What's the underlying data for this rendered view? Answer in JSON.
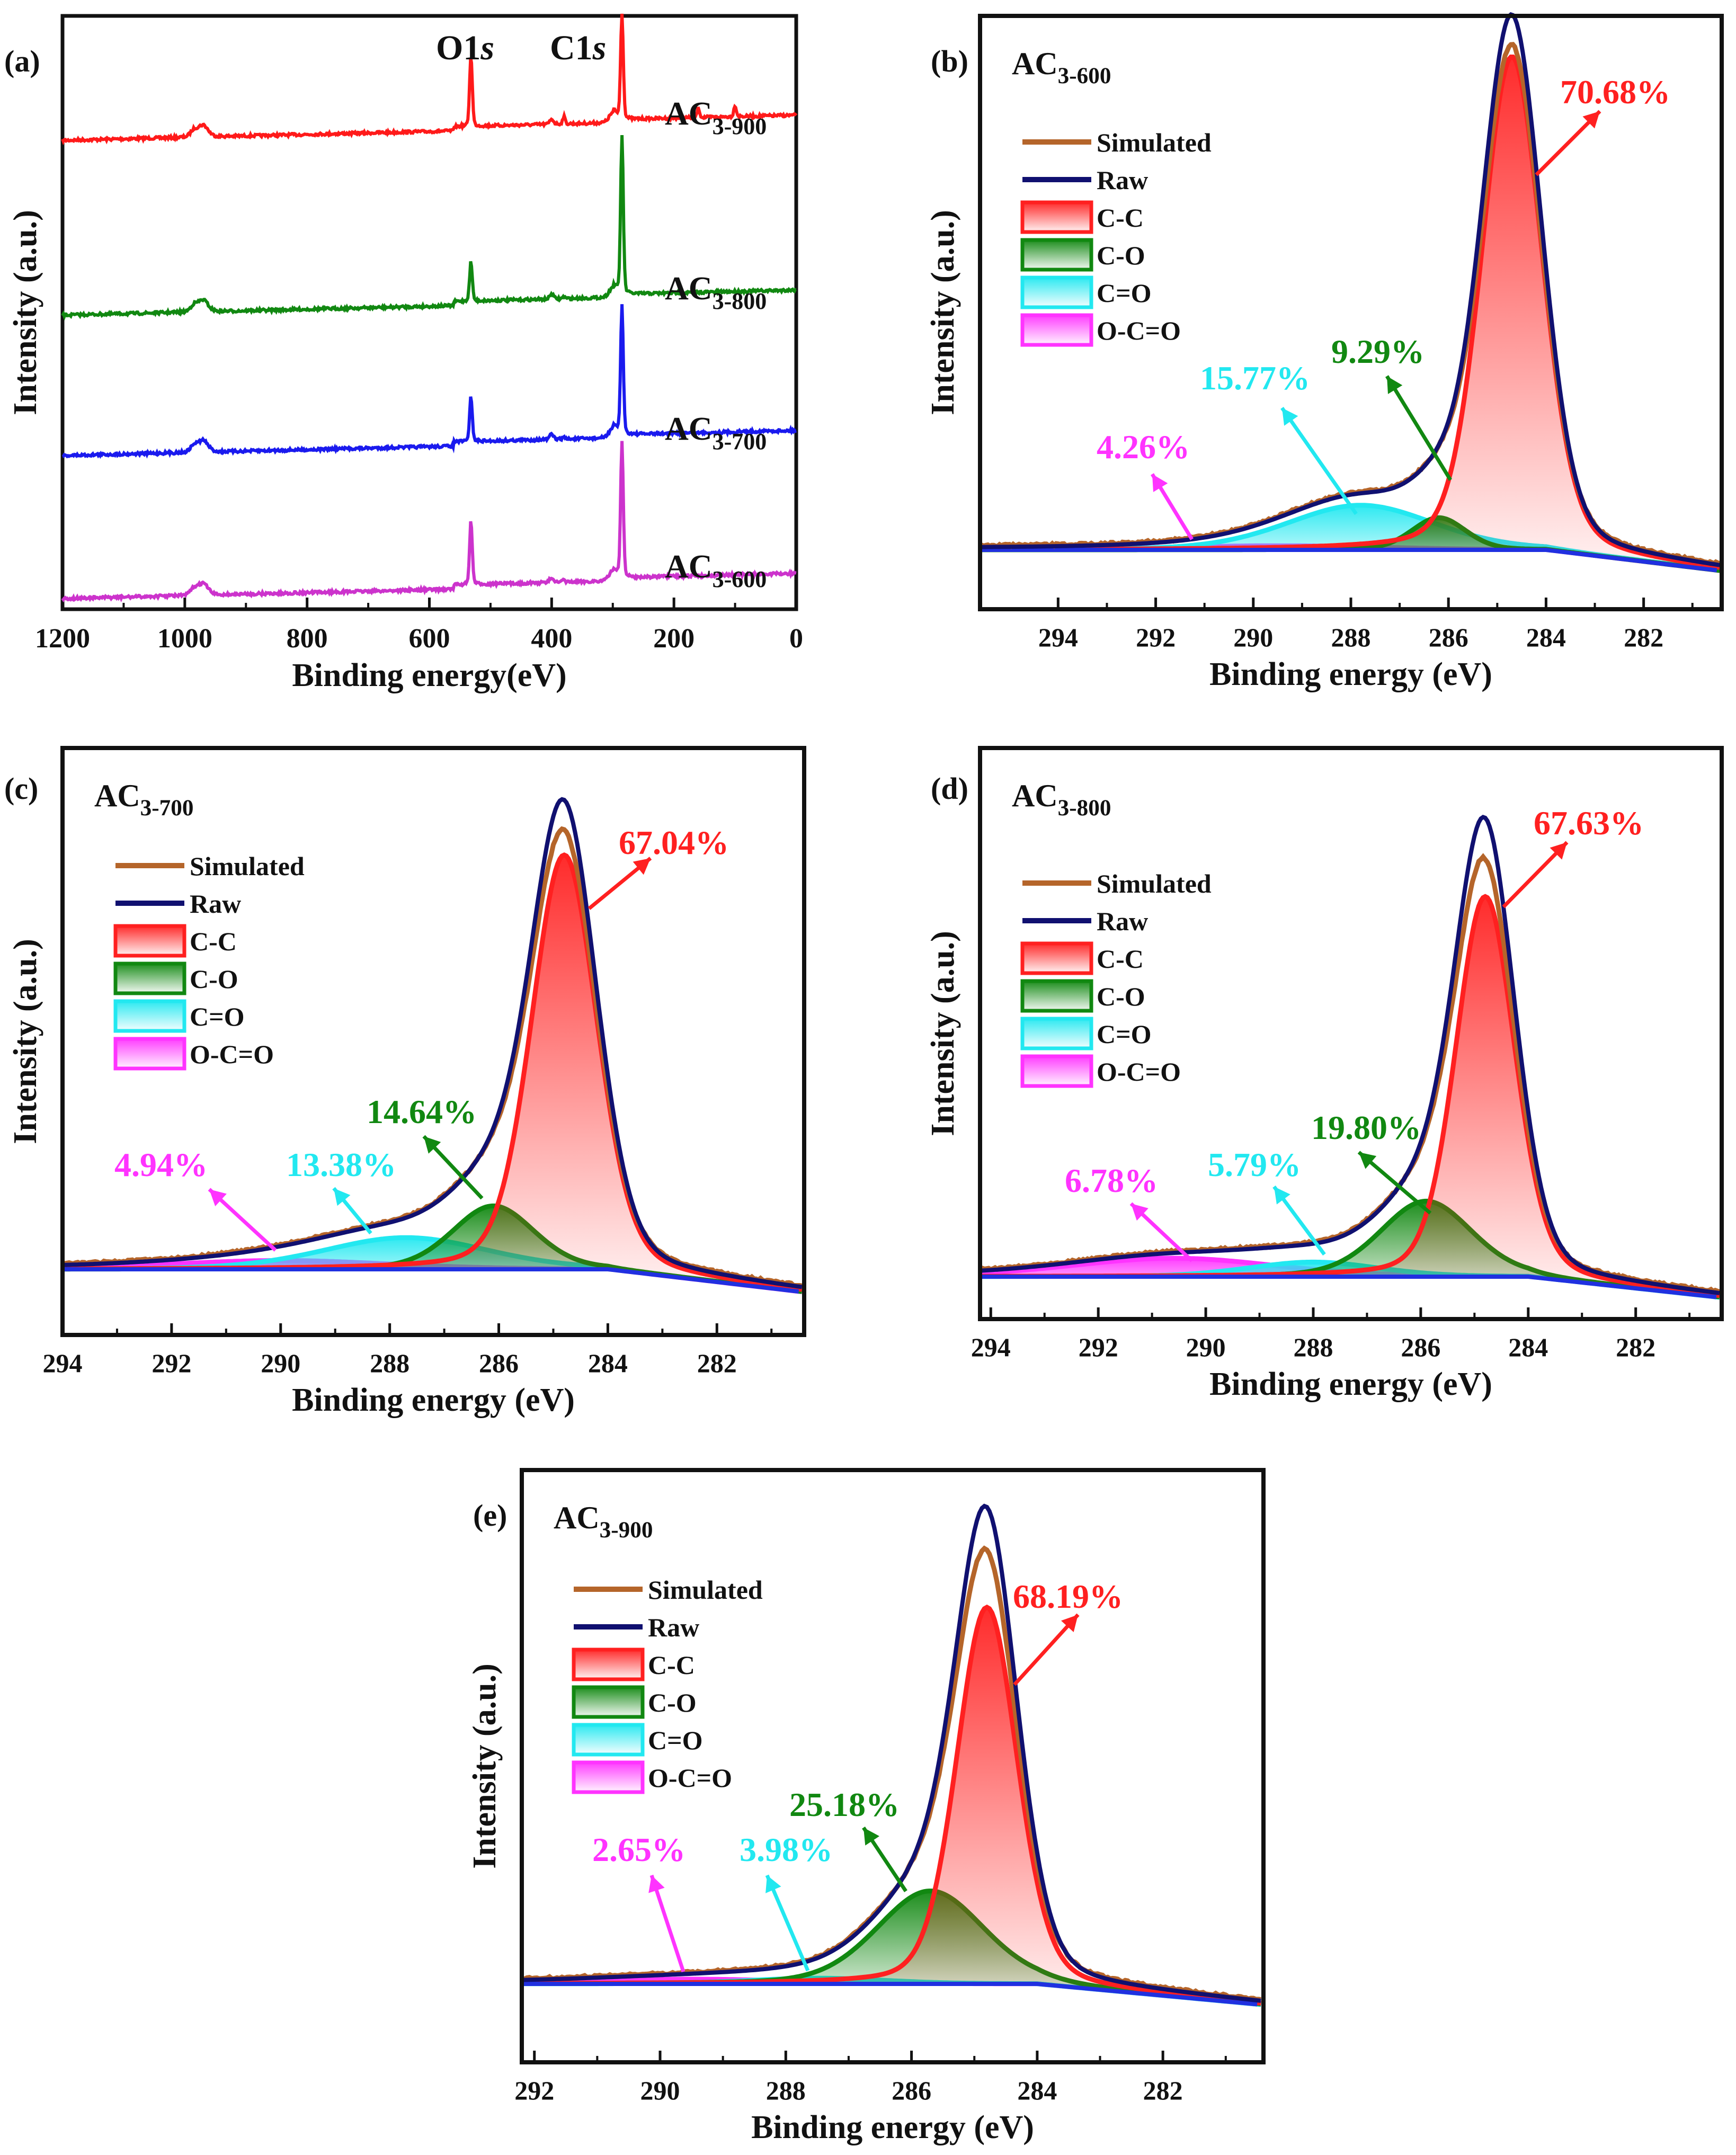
{
  "chart_data": [
    {
      "panel": "(a)",
      "type": "line",
      "title": "",
      "xlabel": "Binding energy(eV)",
      "ylabel": "Intensity (a.u.)",
      "xlim": [
        1200,
        0
      ],
      "xticks": [
        "1200",
        "1000",
        "800",
        "600",
        "400",
        "200",
        "0"
      ],
      "peak_labels": {
        "o1s_main": "O1",
        "o1s_italic": "s",
        "c1s_main": "C1",
        "c1s_italic": "s"
      },
      "series": [
        {
          "name": "AC3-900",
          "label_main": "AC",
          "label_sub": "3-900",
          "color": "#ff1a1a"
        },
        {
          "name": "AC3-800",
          "label_main": "AC",
          "label_sub": "3-800",
          "color": "#118811"
        },
        {
          "name": "AC3-700",
          "label_main": "AC",
          "label_sub": "3-700",
          "color": "#1a1aee"
        },
        {
          "name": "AC3-600",
          "label_main": "AC",
          "label_sub": "3-600",
          "color": "#cc33cc"
        }
      ]
    },
    {
      "panel": "(b)",
      "type": "area",
      "sample_main": "AC",
      "sample_sub": "3-600",
      "xlabel": "Binding energy (eV)",
      "ylabel": "Intensity (a.u.)",
      "xlim": [
        295.6,
        280.4
      ],
      "xticks": [
        "294",
        "292",
        "290",
        "288",
        "286",
        "284",
        "282"
      ],
      "legend": [
        "Simulated",
        "Raw",
        "C-C",
        "C-O",
        "C=O",
        "O-C=O"
      ],
      "components": [
        {
          "name": "C-C",
          "center": 284.7,
          "percent": "70.68%"
        },
        {
          "name": "C-O",
          "center": 286.2,
          "percent": "9.29%"
        },
        {
          "name": "C=O",
          "center": 287.8,
          "percent": "15.77%"
        },
        {
          "name": "O-C=O",
          "center": 289.5,
          "percent": "4.26%"
        }
      ]
    },
    {
      "panel": "(c)",
      "type": "area",
      "sample_main": "AC",
      "sample_sub": "3-700",
      "xlabel": "Binding energy (eV)",
      "ylabel": "Intensity (a.u.)",
      "xlim": [
        294,
        280.4
      ],
      "xticks": [
        "294",
        "292",
        "290",
        "288",
        "286",
        "284",
        "282"
      ],
      "legend": [
        "Simulated",
        "Raw",
        "C-C",
        "C-O",
        "C=O",
        "O-C=O"
      ],
      "components": [
        {
          "name": "C-C",
          "center": 284.8,
          "percent": "67.04%"
        },
        {
          "name": "C-O",
          "center": 286.1,
          "percent": "14.64%"
        },
        {
          "name": "C=O",
          "center": 287.7,
          "percent": "13.38%"
        },
        {
          "name": "O-C=O",
          "center": 290.0,
          "percent": "4.94%"
        }
      ]
    },
    {
      "panel": "(d)",
      "type": "area",
      "sample_main": "AC",
      "sample_sub": "3-800",
      "xlabel": "Binding energy (eV)",
      "ylabel": "Intensity (a.u.)",
      "xlim": [
        294.2,
        280.4
      ],
      "xticks": [
        "294",
        "292",
        "290",
        "288",
        "286",
        "284",
        "282"
      ],
      "legend": [
        "Simulated",
        "Raw",
        "C-C",
        "C-O",
        "C=O",
        "O-C=O"
      ],
      "components": [
        {
          "name": "C-C",
          "center": 284.8,
          "percent": "67.63%"
        },
        {
          "name": "C-O",
          "center": 285.9,
          "percent": "19.80%"
        },
        {
          "name": "C=O",
          "center": 288.0,
          "percent": "5.79%"
        },
        {
          "name": "O-C=O",
          "center": 290.6,
          "percent": "6.78%"
        }
      ]
    },
    {
      "panel": "(e)",
      "type": "area",
      "sample_main": "AC",
      "sample_sub": "3-900",
      "xlabel": "Binding energy (eV)",
      "ylabel": "Intensity (a.u.)",
      "xlim": [
        292.2,
        280.4
      ],
      "xticks": [
        "292",
        "290",
        "288",
        "286",
        "284",
        "282"
      ],
      "legend": [
        "Simulated",
        "Raw",
        "C-C",
        "C-O",
        "C=O",
        "O-C=O"
      ],
      "components": [
        {
          "name": "C-C",
          "center": 284.8,
          "percent": "68.19%"
        },
        {
          "name": "C-O",
          "center": 285.7,
          "percent": "25.18%"
        },
        {
          "name": "C=O",
          "center": 287.5,
          "percent": "3.98%"
        },
        {
          "name": "O-C=O",
          "center": 289.5,
          "percent": "2.65%"
        }
      ]
    }
  ],
  "colors": {
    "cc": "#ff2020",
    "co": "#118811",
    "ceo": "#22e8f0",
    "occo": "#ff33ff",
    "simulated": "#b5652a",
    "raw": "#101070"
  }
}
